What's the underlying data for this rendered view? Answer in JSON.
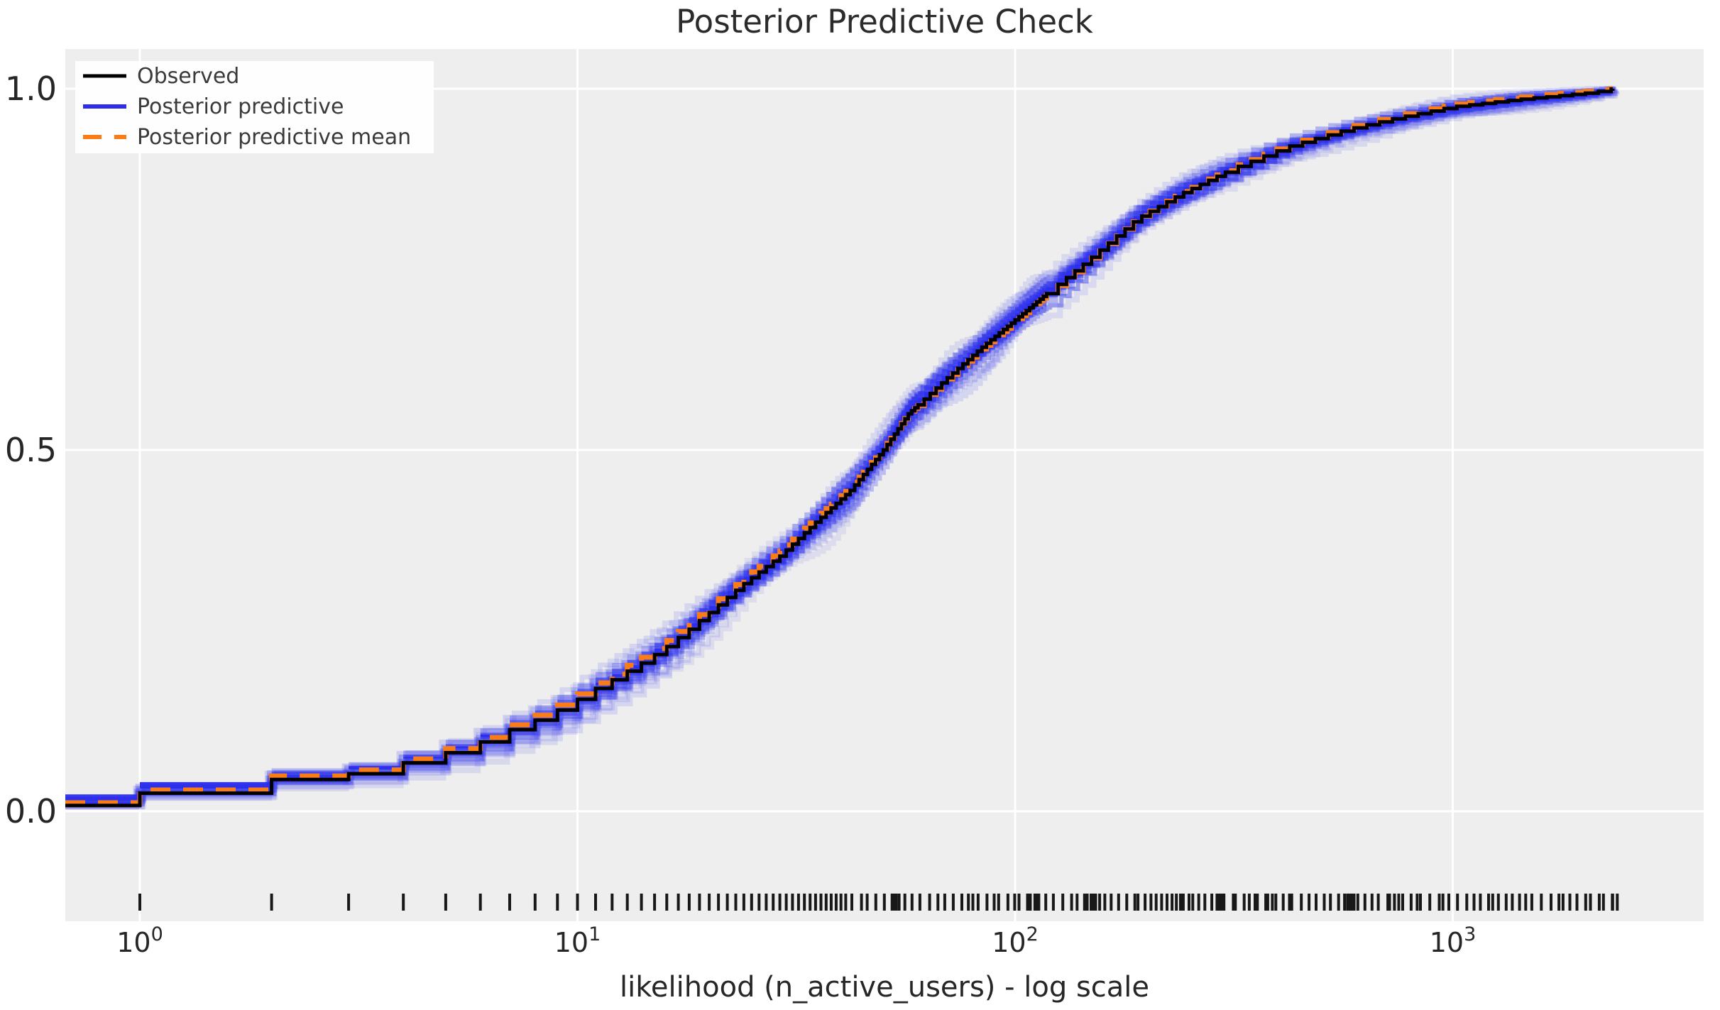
{
  "chart_data": {
    "type": "line",
    "subtype": "ecdf-posterior-predictive-check",
    "title": "Posterior Predictive Check",
    "xlabel": "likelihood (n_active_users) - log scale",
    "ylabel": "",
    "x_scale": "log",
    "xlim": [
      0.675,
      3750
    ],
    "ylim": [
      -0.152,
      1.055
    ],
    "grid": true,
    "plot_background": "#eeeeee",
    "grid_color": "#ffffff",
    "text_color": "#262626",
    "x_tick_values": [
      1,
      10,
      100,
      1000
    ],
    "x_tick_base": "10",
    "x_tick_exponents": [
      "0",
      "1",
      "2",
      "3"
    ],
    "y_ticks": [
      {
        "value": 1.0,
        "label": "1.0"
      },
      {
        "value": 0.5,
        "label": "0.5"
      },
      {
        "value": 0.0,
        "label": "0.0"
      }
    ],
    "legend": {
      "position": "upper left",
      "background": "#ffffff"
    },
    "series": [
      {
        "name": "Observed",
        "color": "#000000",
        "style": "solid-step",
        "line_width": 5,
        "ecdf_points": [
          [
            1,
            0.025
          ],
          [
            2,
            0.044
          ],
          [
            3,
            0.052
          ],
          [
            4,
            0.067
          ],
          [
            5,
            0.081
          ],
          [
            6,
            0.096
          ],
          [
            7,
            0.113
          ],
          [
            8,
            0.126
          ],
          [
            9,
            0.14
          ],
          [
            10,
            0.155
          ],
          [
            11,
            0.17
          ],
          [
            12,
            0.182
          ],
          [
            14,
            0.205
          ],
          [
            16,
            0.228
          ],
          [
            18,
            0.252
          ],
          [
            20,
            0.275
          ],
          [
            24,
            0.315
          ],
          [
            29,
            0.353
          ],
          [
            35,
            0.4
          ],
          [
            42,
            0.444
          ],
          [
            50,
            0.5
          ],
          [
            57,
            0.55
          ],
          [
            70,
            0.6
          ],
          [
            85,
            0.645
          ],
          [
            100,
            0.68
          ],
          [
            120,
            0.72
          ],
          [
            145,
            0.76
          ],
          [
            190,
            0.82
          ],
          [
            240,
            0.855
          ],
          [
            316,
            0.89
          ],
          [
            420,
            0.92
          ],
          [
            577,
            0.944
          ],
          [
            750,
            0.96
          ],
          [
            1000,
            0.975
          ],
          [
            1400,
            0.985
          ],
          [
            1800,
            0.991
          ],
          [
            2100,
            0.995
          ],
          [
            2320,
            1.0
          ]
        ],
        "baseline_value": 0.008
      },
      {
        "name": "Posterior predictive",
        "color": "#2a2eec",
        "style": "step-band",
        "band_rel_halfwidth": 0.05,
        "n_curves": 24
      },
      {
        "name": "Posterior predictive mean",
        "color": "#fa7c17",
        "style": "dashed-step",
        "line_width": 7
      }
    ],
    "rug": {
      "color": "#000000",
      "value_min": 1,
      "value_max": 2320,
      "all_integers_until": 40
    }
  }
}
